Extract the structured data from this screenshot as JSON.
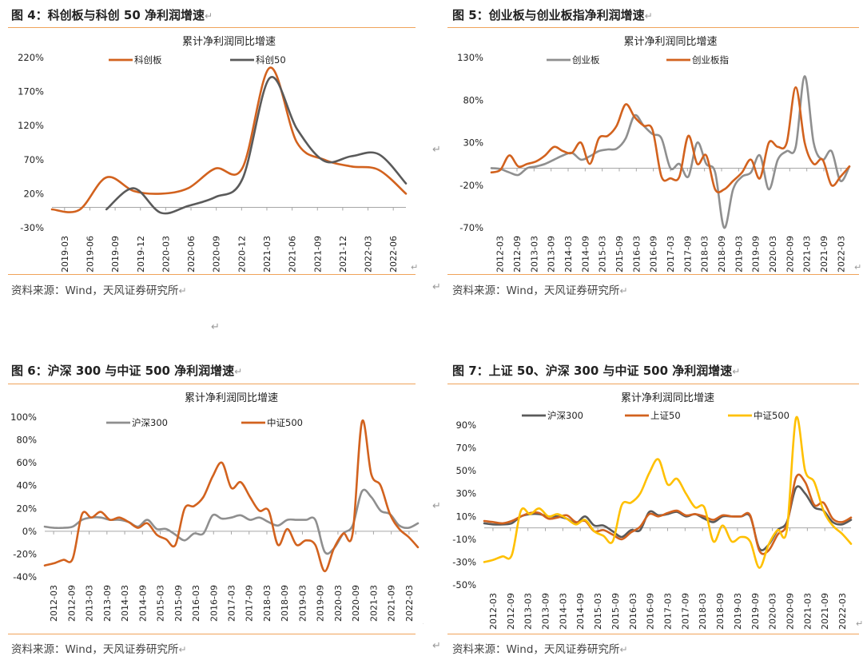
{
  "colors": {
    "orange": "#d2621e",
    "dark": "#5a5a5a",
    "gray": "#8f8f8f",
    "yellow": "#ffc000",
    "rule": "#f0a35a"
  },
  "return_mark": "↵",
  "charts": [
    {
      "id": "fig4",
      "fig_title": "图 4：科创板与科创 50 净利润增速",
      "source": "资料来源：Wind，天风证券研究所",
      "chart_data": {
        "type": "line",
        "title": "累计净利润同比增速",
        "x_labels": [
          "2019-03",
          "2019-06",
          "2019-09",
          "2019-12",
          "2020-03",
          "2020-06",
          "2020-09",
          "2020-12",
          "2021-03",
          "2021-06",
          "2021-09",
          "2021-12",
          "2022-03",
          "2022-06"
        ],
        "yticks": [
          "220%",
          "170%",
          "120%",
          "70%",
          "20%",
          "-30%"
        ],
        "ylim": [
          -30,
          220
        ],
        "series": [
          {
            "name": "科创板",
            "color": "orange",
            "values": [
              -3,
              -4,
              44,
              24,
              20,
              28,
              57,
              58,
              205,
              95,
              70,
              60,
              55,
              20
            ]
          },
          {
            "name": "科创50",
            "color": "dark",
            "values": [
              null,
              null,
              -3,
              28,
              -8,
              2,
              15,
              42,
              190,
              115,
              68,
              75,
              78,
              35
            ]
          }
        ]
      }
    },
    {
      "id": "fig5",
      "fig_title": "图 5：创业板与创业板指净利润增速",
      "source": "资料来源：Wind，天风证券研究所",
      "chart_data": {
        "type": "line",
        "title": "累计净利润同比增速",
        "x_labels": [
          "2012-03",
          "2012-09",
          "2013-03",
          "2013-09",
          "2014-03",
          "2014-09",
          "2015-03",
          "2015-09",
          "2016-03",
          "2016-09",
          "2017-03",
          "2017-09",
          "2018-03",
          "2018-09",
          "2019-03",
          "2019-09",
          "2020-03",
          "2020-09",
          "2021-03",
          "2021-09",
          "2022-03"
        ],
        "yticks": [
          "130%",
          "80%",
          "30%",
          "-20%",
          "-70%"
        ],
        "ylim": [
          -70,
          130
        ],
        "series": [
          {
            "name": "创业板",
            "color": "gray",
            "values": [
              0,
              -1,
              -5,
              -8,
              0,
              2,
              5,
              10,
              15,
              18,
              10,
              14,
              20,
              22,
              23,
              35,
              62,
              50,
              40,
              35,
              0,
              5,
              -10,
              30,
              5,
              -5,
              -70,
              -25,
              -10,
              -5,
              15,
              -25,
              10,
              20,
              25,
              108,
              30,
              10,
              20,
              -15,
              2
            ]
          },
          {
            "name": "创业板指",
            "color": "orange",
            "values": [
              -5,
              -2,
              15,
              2,
              5,
              8,
              15,
              25,
              20,
              18,
              30,
              5,
              35,
              38,
              50,
              75,
              60,
              50,
              45,
              -10,
              -12,
              -10,
              38,
              5,
              15,
              -25,
              -25,
              -15,
              -5,
              10,
              -12,
              30,
              25,
              30,
              95,
              30,
              5,
              10,
              -20,
              -10,
              2
            ]
          }
        ]
      }
    },
    {
      "id": "fig6",
      "fig_title": "图 6：沪深 300 与中证 500 净利润增速",
      "source": "资料来源：Wind，天风证券研究所",
      "chart_data": {
        "type": "line",
        "title": "累计净利润同比增速",
        "x_labels": [
          "2012-03",
          "2012-09",
          "2013-03",
          "2013-09",
          "2014-03",
          "2014-09",
          "2015-03",
          "2015-09",
          "2016-03",
          "2016-09",
          "2017-03",
          "2017-09",
          "2018-03",
          "2018-09",
          "2019-03",
          "2019-09",
          "2020-03",
          "2020-09",
          "2021-03",
          "2021-09",
          "2022-03"
        ],
        "yticks": [
          "100%",
          "80%",
          "60%",
          "40%",
          "20%",
          "0%",
          "-20%",
          "-40%"
        ],
        "ylim": [
          -40,
          100
        ],
        "series": [
          {
            "name": "沪深300",
            "color": "gray",
            "values": [
              4,
              3,
              3,
              4,
              10,
              12,
              12,
              10,
              10,
              8,
              4,
              10,
              2,
              2,
              -3,
              -8,
              -2,
              -2,
              14,
              11,
              12,
              14,
              10,
              12,
              8,
              5,
              10,
              10,
              10,
              10,
              -18,
              -15,
              -2,
              5,
              35,
              30,
              18,
              15,
              5,
              3,
              7
            ]
          },
          {
            "name": "中证500",
            "color": "orange",
            "values": [
              -30,
              -28,
              -25,
              -24,
              15,
              12,
              17,
              10,
              12,
              8,
              3,
              7,
              -3,
              -7,
              -12,
              20,
              22,
              30,
              48,
              60,
              38,
              43,
              30,
              18,
              18,
              -12,
              2,
              -12,
              -8,
              -12,
              -35,
              -15,
              -2,
              -2,
              96,
              50,
              40,
              15,
              2,
              -5,
              -14
            ]
          }
        ]
      }
    },
    {
      "id": "fig7",
      "fig_title": "图 7：上证 50、沪深 300 与中证 500 净利润增速",
      "source": "资料来源：Wind，天风证券研究所",
      "chart_data": {
        "type": "line",
        "title": "累计净利润同比增速",
        "x_labels": [
          "2012-03",
          "2012-09",
          "2013-03",
          "2013-09",
          "2014-03",
          "2014-09",
          "2015-03",
          "2015-09",
          "2016-03",
          "2016-09",
          "2017-03",
          "2017-09",
          "2018-03",
          "2018-09",
          "2019-03",
          "2019-09",
          "2020-03",
          "2020-09",
          "2021-03",
          "2021-09",
          "2022-03"
        ],
        "yticks": [
          "90%",
          "70%",
          "50%",
          "30%",
          "10%",
          "-10%",
          "-30%",
          "-50%"
        ],
        "ylim": [
          -50,
          90
        ],
        "series": [
          {
            "name": "沪深300",
            "color": "dark",
            "values": [
              4,
              3,
              3,
              4,
              10,
              12,
              12,
              10,
              10,
              8,
              4,
              10,
              2,
              2,
              -3,
              -8,
              -2,
              -2,
              14,
              11,
              12,
              14,
              10,
              12,
              8,
              5,
              10,
              10,
              10,
              10,
              -18,
              -15,
              -2,
              5,
              35,
              30,
              18,
              15,
              5,
              3,
              7
            ]
          },
          {
            "name": "上证50",
            "color": "orange",
            "values": [
              6,
              5,
              4,
              6,
              10,
              13,
              13,
              8,
              9,
              11,
              5,
              6,
              -3,
              -2,
              -6,
              -10,
              -4,
              1,
              12,
              10,
              13,
              15,
              11,
              12,
              10,
              7,
              11,
              10,
              10,
              11,
              -20,
              -20,
              -6,
              3,
              44,
              40,
              20,
              22,
              8,
              5,
              9
            ]
          },
          {
            "name": "中证500",
            "color": "yellow",
            "values": [
              -30,
              -28,
              -25,
              -24,
              15,
              12,
              17,
              10,
              12,
              8,
              3,
              7,
              -3,
              -7,
              -12,
              20,
              22,
              30,
              48,
              60,
              38,
              43,
              30,
              18,
              18,
              -12,
              2,
              -12,
              -8,
              -12,
              -35,
              -15,
              -2,
              -2,
              96,
              50,
              40,
              15,
              2,
              -5,
              -14
            ]
          }
        ]
      }
    }
  ]
}
